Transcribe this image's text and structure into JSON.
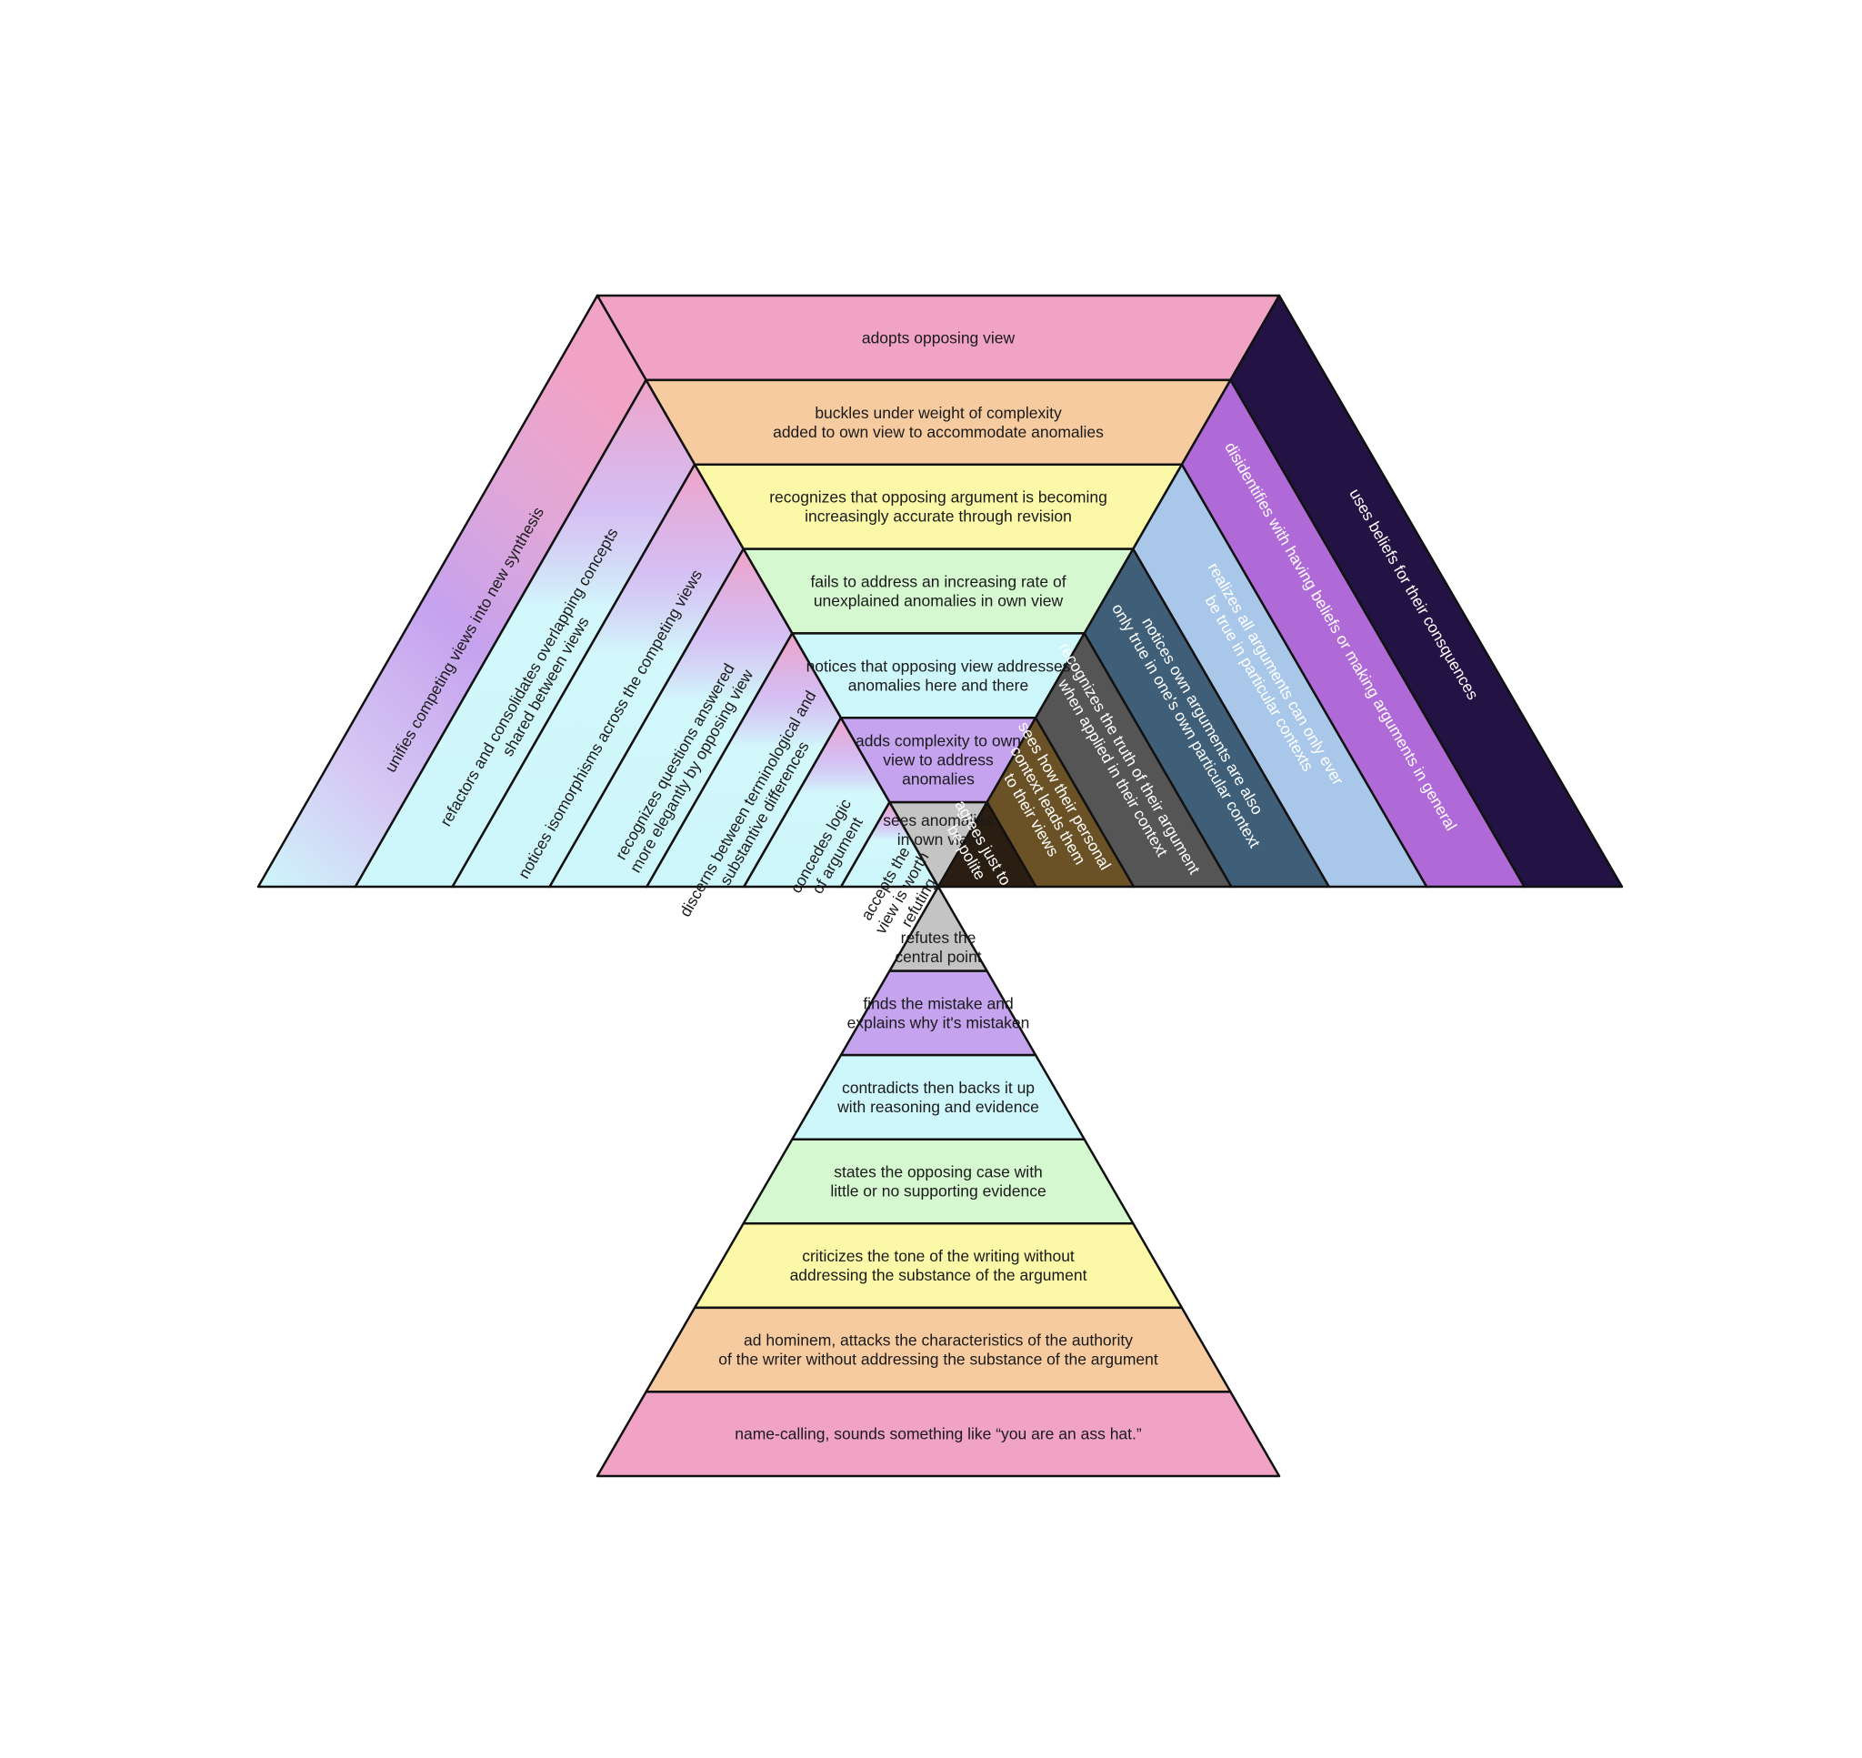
{
  "colors": {
    "pink": "#f1a3c6",
    "peach": "#f6cba0",
    "yellow": "#fbf8a8",
    "green": "#d6f8d0",
    "cyan": "#cdf7fb",
    "purple": "#c5a3ef",
    "gray": "#c4c4c4",
    "outline": "#111111"
  },
  "pyramid": {
    "apex": {
      "text": [
        "sees anomalies",
        "in own view"
      ]
    },
    "top_rows": [
      {
        "lines": [
          "adopts opposing view"
        ],
        "color": "pink"
      },
      {
        "lines": [
          "buckles under weight of complexity",
          "added to own view to accommodate anomalies"
        ],
        "color": "peach"
      },
      {
        "lines": [
          "recognizes that opposing argument is becoming",
          "increasingly accurate through revision"
        ],
        "color": "yellow"
      },
      {
        "lines": [
          "fails to address an increasing rate of",
          "unexplained anomalies in own view"
        ],
        "color": "green"
      },
      {
        "lines": [
          "notices that opposing view addresses",
          "anomalies here and there"
        ],
        "color": "cyan"
      },
      {
        "lines": [
          "adds complexity to own",
          "view to address",
          "anomalies"
        ],
        "color": "purple"
      }
    ],
    "left_bands": [
      {
        "lines": [
          "unifies competing views into new synthesis"
        ]
      },
      {
        "lines": [
          "refactors and consolidates overlapping concepts",
          "shared between views"
        ]
      },
      {
        "lines": [
          "notices isomorphisms across the competing views"
        ]
      },
      {
        "lines": [
          "recognizes questions answered",
          "more elegantly by opposing view"
        ]
      },
      {
        "lines": [
          "discerns between terminological and",
          "substantive differences"
        ]
      },
      {
        "lines": [
          "concedes logic",
          "of argument"
        ]
      },
      {
        "lines": [
          "accepts the",
          "view is worth",
          "refuting"
        ]
      }
    ],
    "right_bands": [
      {
        "lines": [
          "uses beliefs for their consquences"
        ],
        "fill": "#231344"
      },
      {
        "lines": [
          "disidentifies with having beliefs or making arguments in general"
        ],
        "fill": "#b06ad8"
      },
      {
        "lines": [
          "realizes all arguments can only ever",
          "be true in particular contexts"
        ],
        "fill": "#a9c7e8"
      },
      {
        "lines": [
          "notices own arguments are also",
          "only true in one's own particular context"
        ],
        "fill": "#3f5f78"
      },
      {
        "lines": [
          "recognizes the truth of their argument",
          "when applied in their context"
        ],
        "fill": "#555555"
      },
      {
        "lines": [
          "sees how their personal",
          "context leads them",
          "to their views"
        ],
        "fill": "#6b5226"
      },
      {
        "lines": [
          "agrees just to",
          "be polite"
        ],
        "fill": "#2a1d12"
      }
    ],
    "bottom_rows": [
      {
        "lines": [
          "refutes the",
          "central point"
        ],
        "color": "gray"
      },
      {
        "lines": [
          "finds the mistake and",
          "explains why it's mistaken"
        ],
        "color": "purple"
      },
      {
        "lines": [
          "contradicts then backs it up",
          "with reasoning and evidence"
        ],
        "color": "cyan"
      },
      {
        "lines": [
          "states the opposing case with",
          "little or no supporting evidence"
        ],
        "color": "green"
      },
      {
        "lines": [
          "criticizes the tone of the writing without",
          "addressing the substance of the argument"
        ],
        "color": "yellow"
      },
      {
        "lines": [
          "ad hominem, attacks the characteristics of the authority",
          "of the writer without addressing the substance of the argument"
        ],
        "color": "peach"
      },
      {
        "lines": [
          "name-calling, sounds something like “you are an ass hat.”"
        ],
        "color": "pink"
      }
    ]
  }
}
